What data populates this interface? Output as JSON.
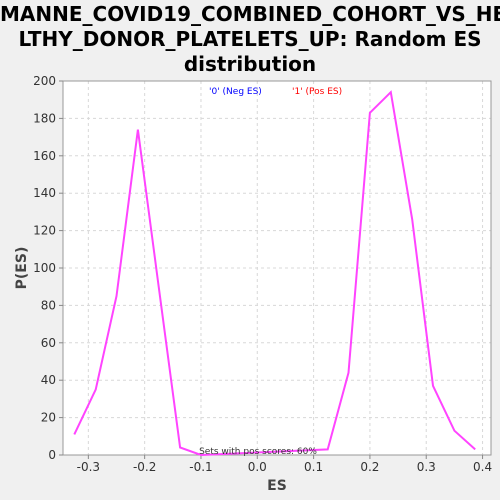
{
  "chart_data": {
    "type": "line",
    "title_lines": [
      "MANNE_COVID19_COMBINED_COHORT_VS_HEA",
      "LTHY_DONOR_PLATELETS_UP: Random ES",
      "distribution"
    ],
    "xlabel": "ES",
    "ylabel": "P(ES)",
    "xlim": [
      -0.345,
      0.415
    ],
    "ylim": [
      0,
      200
    ],
    "x_ticks": [
      -0.3,
      -0.2,
      -0.1,
      0.0,
      0.1,
      0.2,
      0.3,
      0.4
    ],
    "x_tick_labels": [
      "-0.3",
      "-0.2",
      "-0.1",
      "0.0",
      "0.1",
      "0.2",
      "0.3",
      "0.4"
    ],
    "y_ticks": [
      0,
      20,
      40,
      60,
      80,
      100,
      120,
      140,
      160,
      180,
      200
    ],
    "y_tick_labels": [
      "0",
      "20",
      "40",
      "60",
      "80",
      "100",
      "120",
      "140",
      "160",
      "180",
      "200"
    ],
    "grid": true,
    "legend": [
      {
        "label": "'0' (Neg ES)",
        "color": "#0000ff"
      },
      {
        "label": "'1' (Pos ES)",
        "color": "#ff0000"
      }
    ],
    "annotation": "Sets with pos scores: 60%",
    "series": [
      {
        "color": "#ff44ff",
        "x": [
          -0.325,
          -0.287,
          -0.25,
          -0.212,
          -0.175,
          -0.137,
          -0.1,
          0.125,
          0.162,
          0.2,
          0.237,
          0.275,
          0.312,
          0.35,
          0.387
        ],
        "y": [
          11,
          35,
          85,
          174,
          90,
          4,
          0,
          3,
          44,
          183,
          194,
          126,
          37,
          13,
          3
        ]
      }
    ]
  }
}
